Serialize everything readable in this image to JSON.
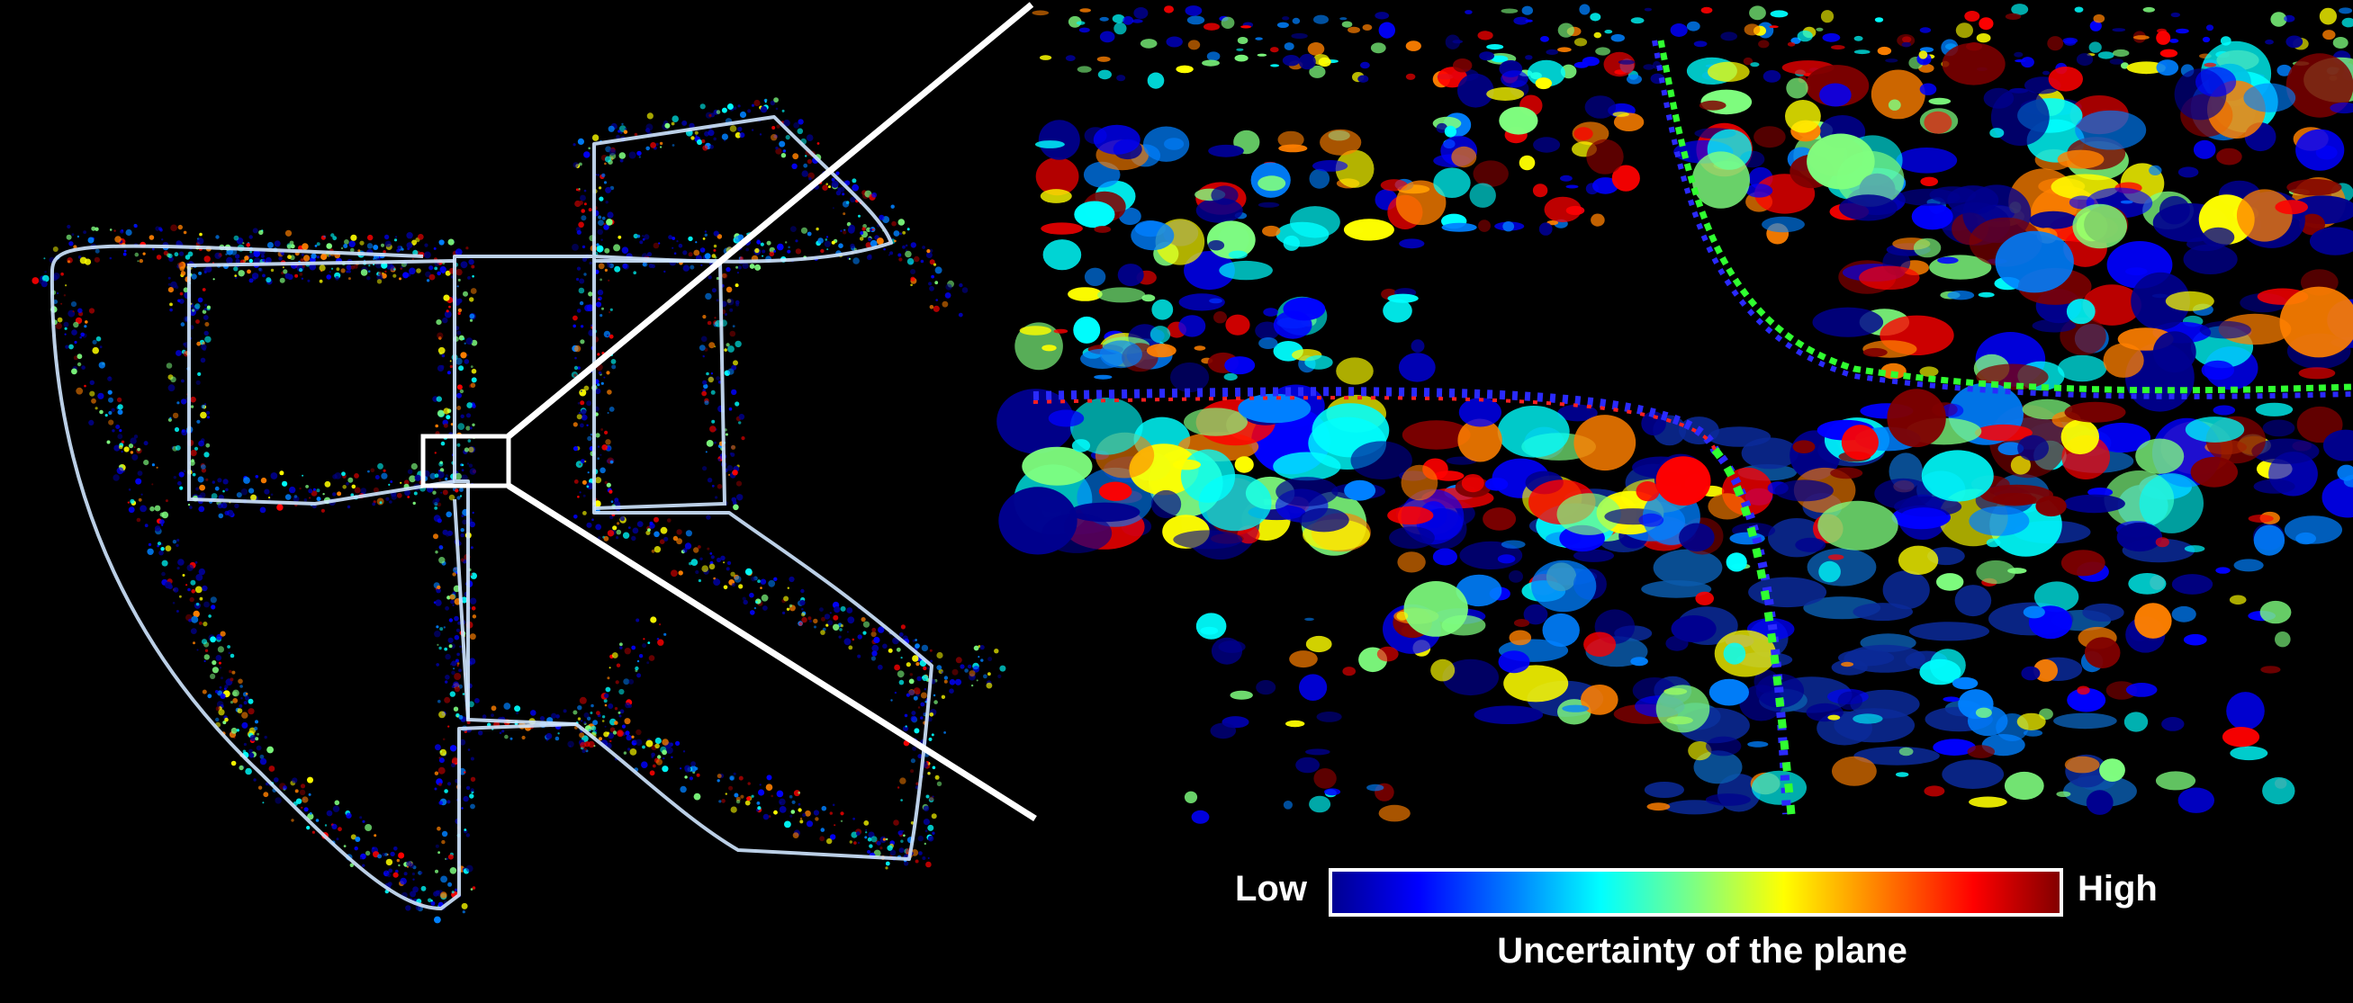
{
  "colorbar": {
    "low_label": "Low",
    "high_label": "High",
    "title": "Uncertainty of the plane",
    "colors": [
      "#00008f",
      "#0000ff",
      "#0080ff",
      "#00ffff",
      "#80ff80",
      "#ffff00",
      "#ff8000",
      "#ff0000",
      "#800000"
    ]
  },
  "colors": {
    "background": "#000000",
    "trajectory": "#cfe6ff",
    "inset_frame": "#ffffff",
    "trajectory_red": "#ff2020",
    "trajectory_green": "#30ff30",
    "trajectory_blue": "#2a2aff"
  }
}
